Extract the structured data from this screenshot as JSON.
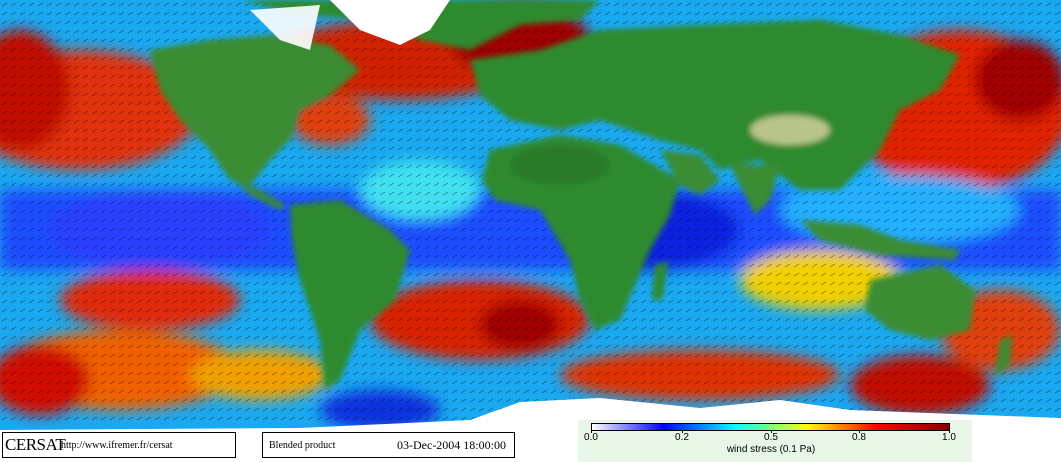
{
  "map": {
    "type": "global wind stress field",
    "land_color": "#2f7d2f",
    "ice_color": "#ffffff",
    "vectors": "black wind arrows over ocean"
  },
  "logo": {
    "name": "CERSAT",
    "url": "http://www.ifremer.fr/cersat"
  },
  "product": {
    "label": "Blended product",
    "datetime": "03-Dec-2004 18:00:00"
  },
  "colorbar": {
    "ticks": [
      "0.0",
      "0.2",
      "0.5",
      "0.8",
      "1.0"
    ],
    "label": "wind stress (0.1 Pa)",
    "colors": [
      "#ffffff",
      "#0000ff",
      "#00ffff",
      "#ffff00",
      "#ff0000",
      "#800000"
    ]
  }
}
